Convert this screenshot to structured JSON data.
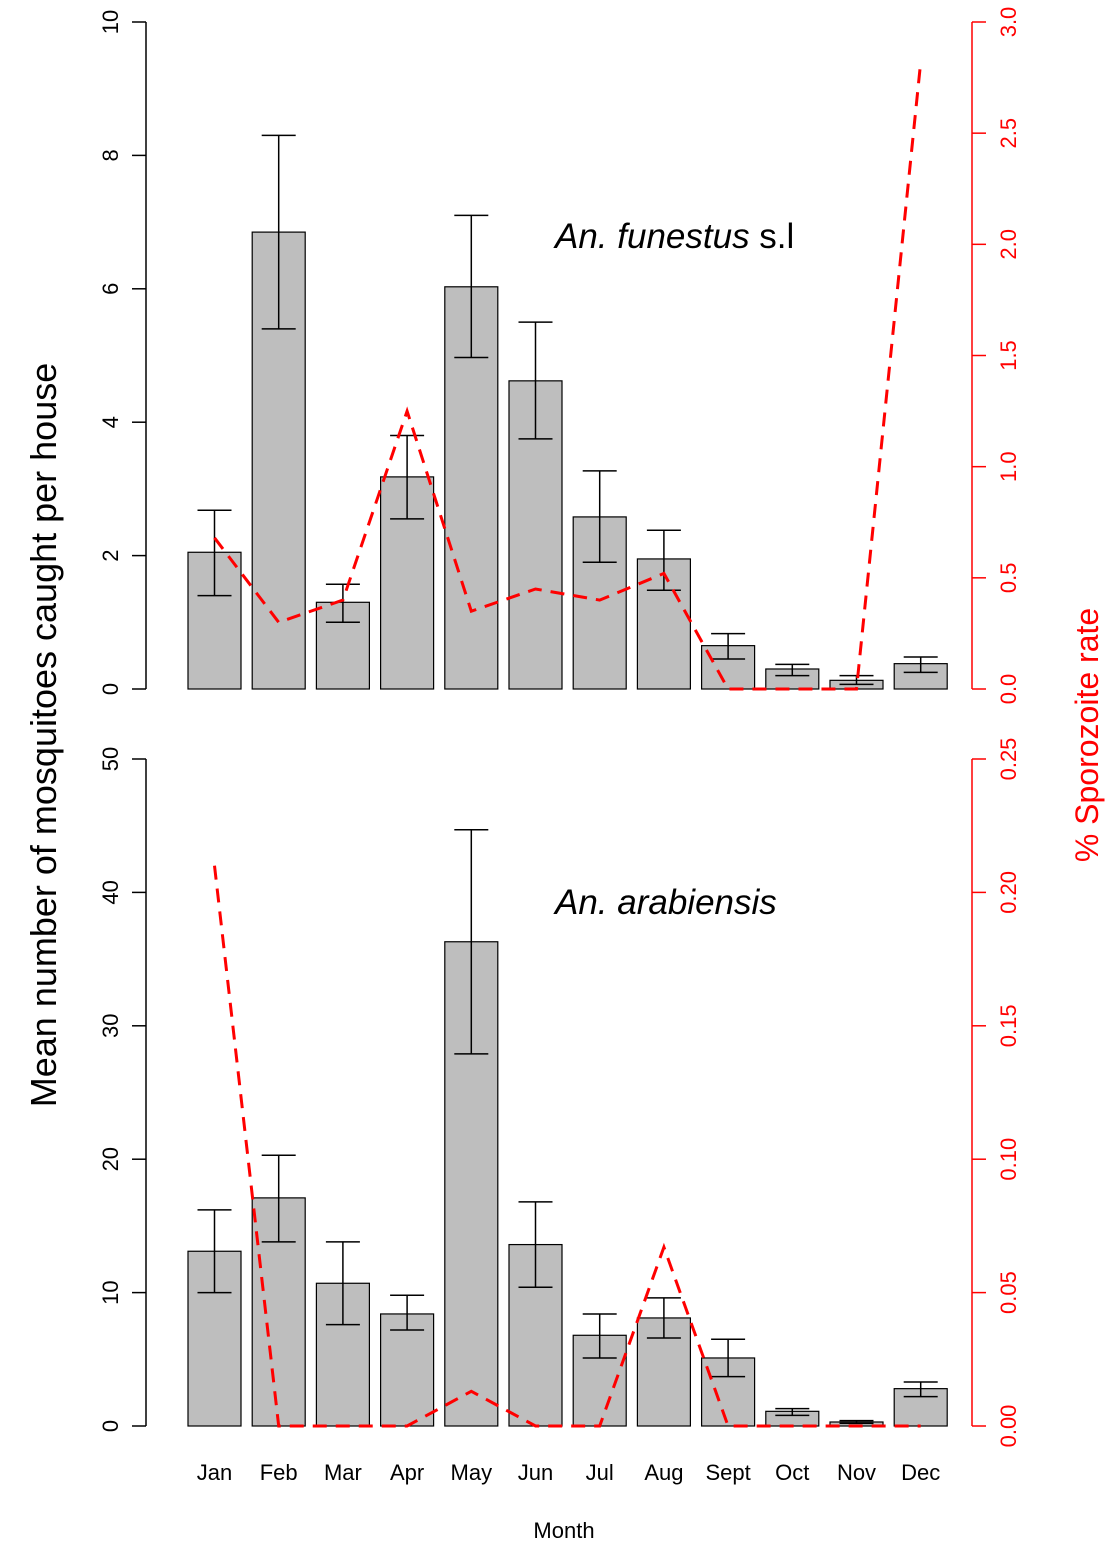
{
  "figure": {
    "ylabel": "Mean number of mosquitoes caught per house",
    "y2label": "% Sporozoite rate",
    "xlabel": "Month",
    "secondary_color": "#ff0000",
    "bar_color": "#bebebe"
  },
  "chart_data": [
    {
      "type": "bar",
      "title_italic": "An. funestus",
      "title_suffix": "s.l",
      "categories": [
        "Jan",
        "Feb",
        "Mar",
        "Apr",
        "May",
        "Jun",
        "Jul",
        "Aug",
        "Sept",
        "Oct",
        "Nov",
        "Dec"
      ],
      "values": [
        2.05,
        6.85,
        1.3,
        3.18,
        6.03,
        4.62,
        2.58,
        1.95,
        0.65,
        0.3,
        0.13,
        0.38
      ],
      "error_lower": [
        1.4,
        5.4,
        1.0,
        2.55,
        4.97,
        3.75,
        1.9,
        1.48,
        0.45,
        0.2,
        0.07,
        0.25
      ],
      "error_upper": [
        2.68,
        8.3,
        1.57,
        3.8,
        7.1,
        5.5,
        3.27,
        2.38,
        0.83,
        0.37,
        0.2,
        0.48
      ],
      "ylim": [
        0,
        10
      ],
      "yticks": [
        0,
        2,
        4,
        6,
        8,
        10
      ],
      "secondary": {
        "type": "line",
        "style": "dashed",
        "values": [
          0.68,
          0.3,
          0.4,
          1.25,
          0.35,
          0.45,
          0.4,
          0.52,
          0.0,
          0.0,
          0.0,
          2.82
        ],
        "ylim": [
          0,
          3.0
        ],
        "yticks": [
          "0.0",
          "0.5",
          "1.0",
          "1.5",
          "2.0",
          "2.5",
          "3.0"
        ]
      }
    },
    {
      "type": "bar",
      "title_italic": "An. arabiensis",
      "title_suffix": "",
      "categories": [
        "Jan",
        "Feb",
        "Mar",
        "Apr",
        "May",
        "Jun",
        "Jul",
        "Aug",
        "Sept",
        "Oct",
        "Nov",
        "Dec"
      ],
      "values": [
        13.1,
        17.1,
        10.7,
        8.4,
        36.3,
        13.6,
        6.8,
        8.1,
        5.1,
        1.1,
        0.3,
        2.8
      ],
      "error_lower": [
        10.0,
        13.8,
        7.6,
        7.2,
        27.9,
        10.4,
        5.1,
        6.6,
        3.7,
        0.8,
        0.2,
        2.2
      ],
      "error_upper": [
        16.2,
        20.3,
        13.8,
        9.8,
        44.7,
        16.8,
        8.4,
        9.6,
        6.5,
        1.3,
        0.4,
        3.3
      ],
      "ylim": [
        0,
        50
      ],
      "yticks": [
        0,
        10,
        20,
        30,
        40,
        50
      ],
      "secondary": {
        "type": "line",
        "style": "dashed",
        "values": [
          0.21,
          0.0,
          0.0,
          0.0,
          0.013,
          0.0,
          0.0,
          0.067,
          0.0,
          0.0,
          0.0,
          0.0
        ],
        "ylim": [
          0,
          0.25
        ],
        "yticks": [
          "0.00",
          "0.05",
          "0.10",
          "0.15",
          "0.20",
          "0.25"
        ]
      }
    }
  ]
}
